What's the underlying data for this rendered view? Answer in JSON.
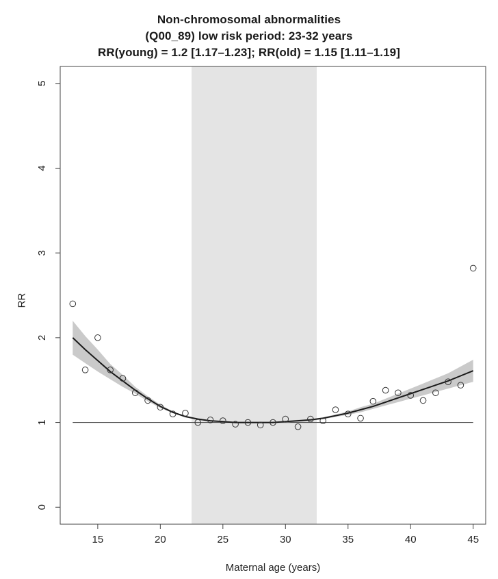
{
  "chart_data": {
    "type": "scatter",
    "title": "Non-chromosomal abnormalities",
    "subtitle": "(Q00_89)   low risk period: 23-32 years",
    "subtitle2": "RR(young) = 1.2 [1.17–1.23];   RR(old) = 1.15 [1.11–1.19]",
    "xlabel": "Maternal age (years)",
    "ylabel": "RR",
    "xlim": [
      12,
      46
    ],
    "ylim": [
      -0.2,
      5.2
    ],
    "xticks": [
      15,
      20,
      25,
      30,
      35,
      40,
      45
    ],
    "yticks": [
      0,
      1,
      2,
      3,
      4,
      5
    ],
    "grid": false,
    "shaded_region": [
      22.5,
      32.5
    ],
    "reference_line": 1,
    "points": {
      "x": [
        13,
        14,
        15,
        16,
        17,
        18,
        19,
        20,
        21,
        22,
        23,
        24,
        25,
        26,
        27,
        28,
        29,
        30,
        31,
        32,
        33,
        34,
        35,
        36,
        37,
        38,
        39,
        40,
        41,
        42,
        43,
        44,
        45
      ],
      "y": [
        2.4,
        1.62,
        2.0,
        1.62,
        1.52,
        1.35,
        1.26,
        1.18,
        1.1,
        1.11,
        1.0,
        1.03,
        1.02,
        0.98,
        1.0,
        0.97,
        1.0,
        1.04,
        0.95,
        1.04,
        1.02,
        1.15,
        1.1,
        1.05,
        1.25,
        1.38,
        1.35,
        1.32,
        1.26,
        1.35,
        1.48,
        1.44,
        2.82
      ]
    },
    "fit_curve": {
      "x": [
        13,
        14,
        15,
        16,
        17,
        18,
        19,
        20,
        21,
        22,
        23,
        24,
        25,
        26,
        27,
        28,
        29,
        30,
        31,
        32,
        33,
        34,
        35,
        36,
        37,
        38,
        39,
        40,
        41,
        42,
        43,
        44,
        45
      ],
      "y": [
        2.0,
        1.86,
        1.73,
        1.6,
        1.49,
        1.38,
        1.28,
        1.19,
        1.12,
        1.07,
        1.04,
        1.02,
        1.01,
        1.0,
        1.0,
        1.0,
        1.0,
        1.01,
        1.02,
        1.03,
        1.05,
        1.08,
        1.11,
        1.15,
        1.19,
        1.24,
        1.29,
        1.34,
        1.39,
        1.44,
        1.49,
        1.55,
        1.61
      ],
      "lower": [
        1.8,
        1.7,
        1.6,
        1.51,
        1.42,
        1.34,
        1.25,
        1.17,
        1.11,
        1.06,
        1.03,
        1.015,
        1.005,
        0.995,
        0.995,
        0.995,
        0.995,
        1.0,
        1.01,
        1.02,
        1.04,
        1.065,
        1.09,
        1.12,
        1.16,
        1.2,
        1.24,
        1.28,
        1.32,
        1.36,
        1.4,
        1.44,
        1.48
      ],
      "upper": [
        2.2,
        2.02,
        1.86,
        1.69,
        1.56,
        1.42,
        1.31,
        1.21,
        1.13,
        1.08,
        1.05,
        1.025,
        1.015,
        1.005,
        1.005,
        1.005,
        1.005,
        1.02,
        1.03,
        1.04,
        1.06,
        1.095,
        1.13,
        1.18,
        1.22,
        1.28,
        1.34,
        1.4,
        1.46,
        1.52,
        1.58,
        1.66,
        1.74
      ]
    },
    "colors": {
      "shade": "#e4e4e4",
      "band": "#bdbdbd",
      "curve": "#1a1a1a",
      "ref_line": "#555555",
      "points": "#333333",
      "axis": "#444444"
    }
  }
}
